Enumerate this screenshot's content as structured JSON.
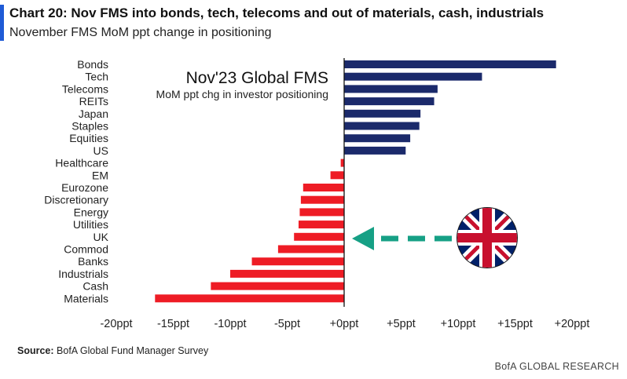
{
  "header": {
    "title": "Chart 20: Nov FMS into bonds, tech, telecoms and out of materials, cash, industrials",
    "subtitle": "November FMS MoM ppt change in positioning"
  },
  "footer": {
    "source_label": "Source:",
    "source_text": "BofA Global Fund Manager Survey",
    "brand": "BofA GLOBAL RESEARCH"
  },
  "colors": {
    "positive": "#1b2a6b",
    "negative": "#ee1c25",
    "arrow": "#16a085",
    "accent": "#1f5bd6"
  },
  "chart_data": {
    "type": "bar",
    "orientation": "horizontal",
    "inset_title": "Nov'23 Global FMS",
    "inset_subtitle": "MoM ppt chg in investor positioning",
    "categories": [
      "Bonds",
      "Tech",
      "Telecoms",
      "REITs",
      "Japan",
      "Staples",
      "Equities",
      "US",
      "Healthcare",
      "EM",
      "Eurozone",
      "Discretionary",
      "Energy",
      "Utilities",
      "UK",
      "Commod",
      "Banks",
      "Industrials",
      "Cash",
      "Materials"
    ],
    "values": [
      18.6,
      12.1,
      8.2,
      7.9,
      6.7,
      6.6,
      5.8,
      5.4,
      -0.3,
      -1.2,
      -3.6,
      -3.8,
      -3.9,
      -4.0,
      -4.4,
      -5.8,
      -8.1,
      -10.0,
      -11.7,
      -16.6
    ],
    "xlim": [
      -20,
      20
    ],
    "x_ticks": [
      "-20ppt",
      "-15ppt",
      "-10ppt",
      "-5ppt",
      "+0ppt",
      "+5ppt",
      "+10ppt",
      "+15ppt",
      "+20ppt"
    ],
    "x_tick_values": [
      -20,
      -15,
      -10,
      -5,
      0,
      5,
      10,
      15,
      20
    ],
    "highlight": {
      "category": "UK",
      "icon": "uk-flag-icon"
    }
  }
}
